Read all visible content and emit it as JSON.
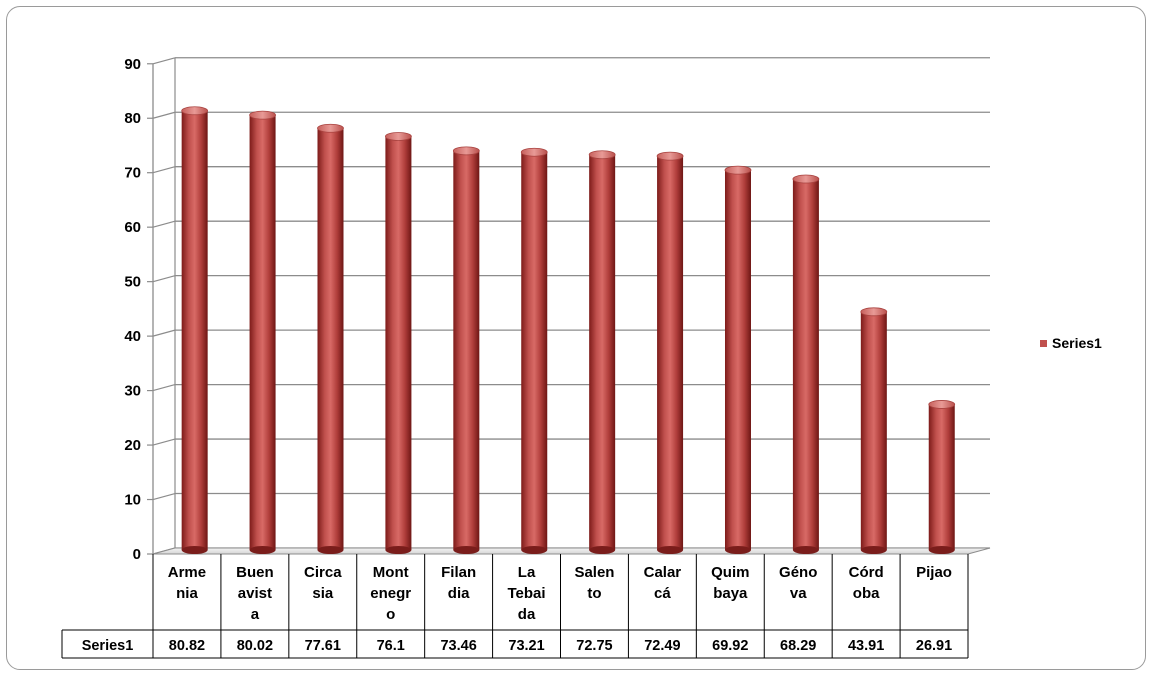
{
  "chart_data": {
    "type": "bar",
    "title": "",
    "xlabel": "",
    "ylabel": "",
    "ylim": [
      0,
      90
    ],
    "yticks": [
      0,
      10,
      20,
      30,
      40,
      50,
      60,
      70,
      80,
      90
    ],
    "grid": true,
    "legend_position": "right",
    "categories": [
      "Armenia",
      "Buenavista",
      "Circasia",
      "Montenegro",
      "Filandia",
      "La Tebaida",
      "Salento",
      "Calarcá",
      "Quimbaya",
      "Génova",
      "Córdoba",
      "Pijao"
    ],
    "category_label_lines": [
      [
        "Arme",
        "nia"
      ],
      [
        "Buen",
        "avist",
        "a"
      ],
      [
        "Circa",
        "sia"
      ],
      [
        "Mont",
        "enegr",
        "o"
      ],
      [
        "Filan",
        "dia"
      ],
      [
        "La",
        "Tebai",
        "da"
      ],
      [
        "Salen",
        "to"
      ],
      [
        "Calar",
        "cá"
      ],
      [
        "Quim",
        "baya"
      ],
      [
        "Géno",
        "va"
      ],
      [
        "Córd",
        "oba"
      ],
      [
        "Pijao"
      ]
    ],
    "series": [
      {
        "name": "Series1",
        "values": [
          80.82,
          80.02,
          77.61,
          76.1,
          73.46,
          73.21,
          72.75,
          72.49,
          69.92,
          68.29,
          43.91,
          26.91
        ],
        "value_labels": [
          "80.82",
          "80.02",
          "77.61",
          "76.1",
          "73.46",
          "73.21",
          "72.75",
          "72.49",
          "69.92",
          "68.29",
          "43.91",
          "26.91"
        ],
        "color": "#c0504d"
      }
    ],
    "data_table": true
  }
}
